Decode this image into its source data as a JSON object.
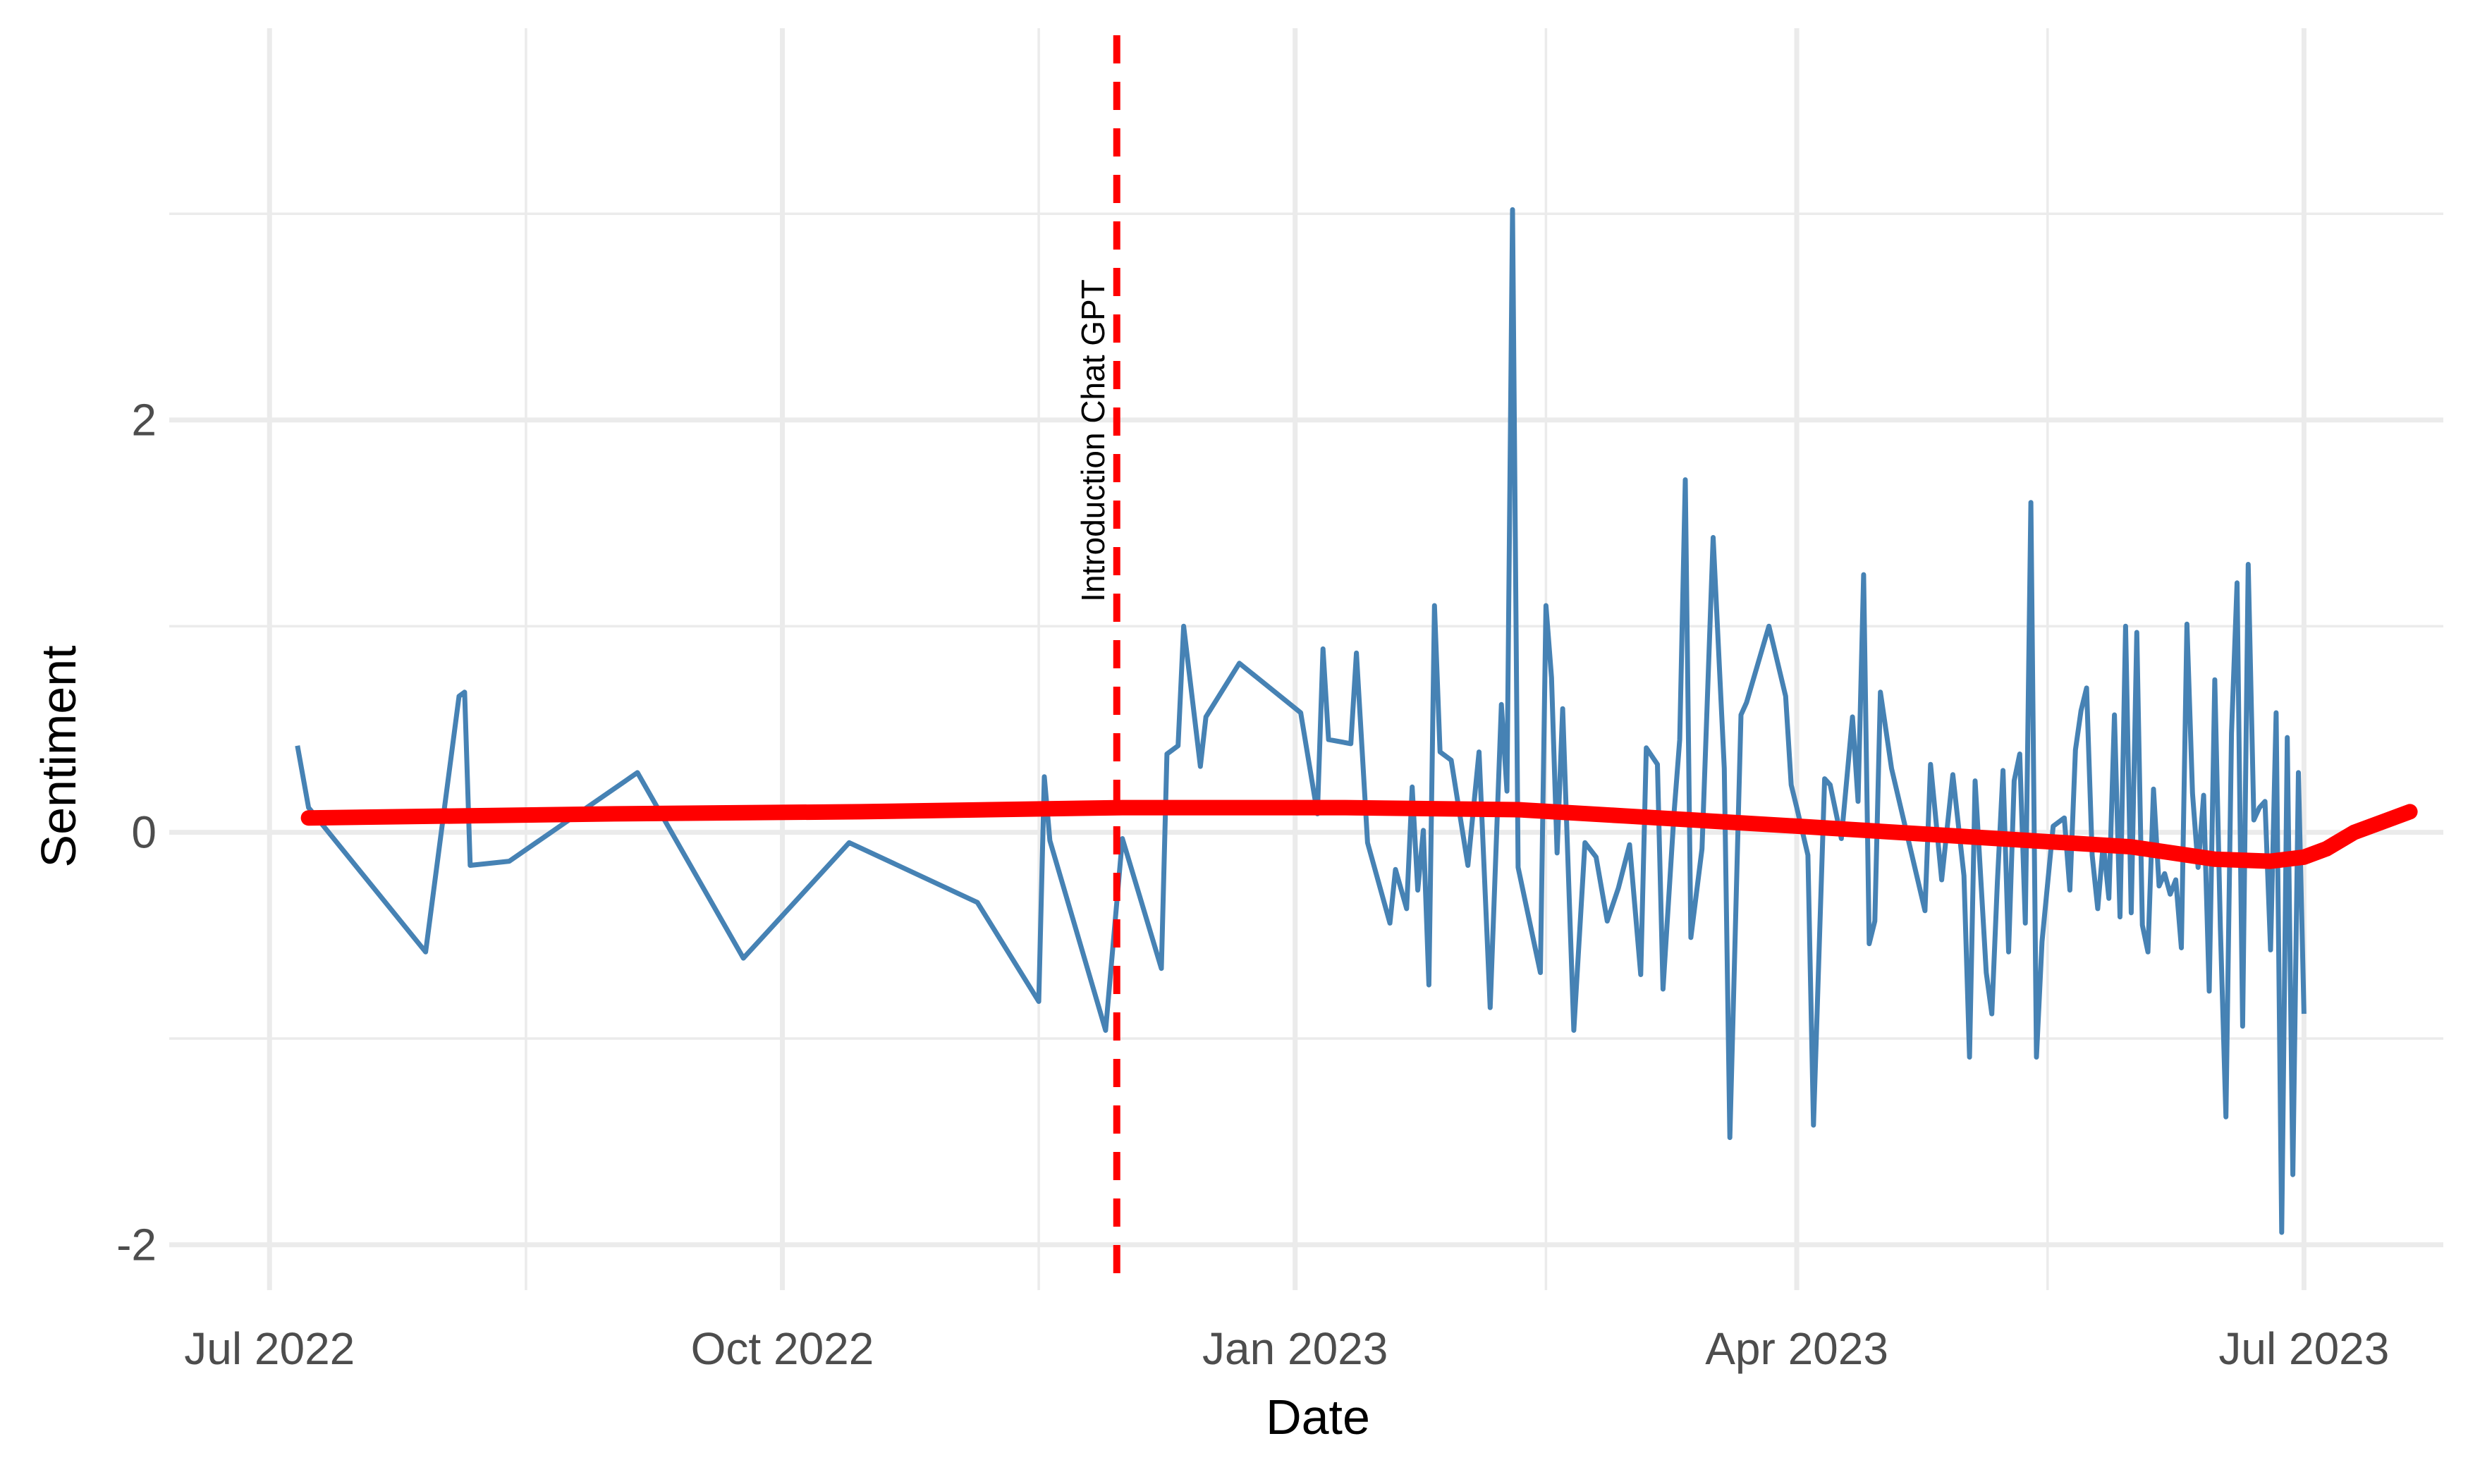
{
  "chart_data": {
    "type": "line",
    "xlabel": "Date",
    "ylabel": "Sentiment",
    "x_ticks": [
      {
        "date": "2022-07-01",
        "label": "Jul 2022"
      },
      {
        "date": "2022-10-01",
        "label": "Oct 2022"
      },
      {
        "date": "2023-01-01",
        "label": "Jan 2023"
      },
      {
        "date": "2023-04-01",
        "label": "Apr 2023"
      },
      {
        "date": "2023-07-01",
        "label": "Jul 2023"
      }
    ],
    "x_minor_ticks": [
      "2022-08-16",
      "2022-11-16",
      "2023-02-15",
      "2023-05-16"
    ],
    "xlim": [
      "2022-06-13",
      "2023-07-26"
    ],
    "y_ticks": [
      {
        "value": -2,
        "label": "-2"
      },
      {
        "value": 0,
        "label": "0"
      },
      {
        "value": 2,
        "label": "2"
      }
    ],
    "y_minor_ticks": [
      -1,
      1,
      3
    ],
    "ylim": [
      -2.22,
      3.9
    ],
    "grid": true,
    "annotation": {
      "date": "2022-11-30",
      "label": "Introduction Chat GPT",
      "color": "#ff0000",
      "style": "dashed"
    },
    "series": [
      {
        "color": "#4682b4",
        "points": [
          [
            "2022-07-06",
            0.42
          ],
          [
            "2022-07-08",
            0.12
          ],
          [
            "2022-07-29",
            -0.58
          ],
          [
            "2022-08-04",
            0.66
          ],
          [
            "2022-08-05",
            0.68
          ],
          [
            "2022-08-06",
            -0.16
          ],
          [
            "2022-08-13",
            -0.14
          ],
          [
            "2022-09-05",
            0.29
          ],
          [
            "2022-09-24",
            -0.61
          ],
          [
            "2022-10-13",
            -0.05
          ],
          [
            "2022-11-05",
            -0.34
          ],
          [
            "2022-11-16",
            -0.82
          ],
          [
            "2022-11-17",
            0.27
          ],
          [
            "2022-11-18",
            -0.04
          ],
          [
            "2022-11-28",
            -0.96
          ],
          [
            "2022-12-01",
            -0.03
          ],
          [
            "2022-12-08",
            -0.66
          ],
          [
            "2022-12-09",
            0.38
          ],
          [
            "2022-12-11",
            0.42
          ],
          [
            "2022-12-12",
            1.0
          ],
          [
            "2022-12-15",
            0.32
          ],
          [
            "2022-12-16",
            0.56
          ],
          [
            "2022-12-22",
            0.82
          ],
          [
            "2023-01-02",
            0.58
          ],
          [
            "2023-01-05",
            0.09
          ],
          [
            "2023-01-06",
            0.89
          ],
          [
            "2023-01-07",
            0.45
          ],
          [
            "2023-01-11",
            0.43
          ],
          [
            "2023-01-12",
            0.87
          ],
          [
            "2023-01-14",
            -0.05
          ],
          [
            "2023-01-18",
            -0.44
          ],
          [
            "2023-01-19",
            -0.18
          ],
          [
            "2023-01-21",
            -0.37
          ],
          [
            "2023-01-22",
            0.22
          ],
          [
            "2023-01-23",
            -0.28
          ],
          [
            "2023-01-24",
            0.01
          ],
          [
            "2023-01-25",
            -0.74
          ],
          [
            "2023-01-26",
            1.1
          ],
          [
            "2023-01-27",
            0.39
          ],
          [
            "2023-01-29",
            0.35
          ],
          [
            "2023-02-01",
            -0.16
          ],
          [
            "2023-02-03",
            0.39
          ],
          [
            "2023-02-05",
            -0.85
          ],
          [
            "2023-02-07",
            0.62
          ],
          [
            "2023-02-08",
            0.2
          ],
          [
            "2023-02-09",
            3.02
          ],
          [
            "2023-02-10",
            -0.17
          ],
          [
            "2023-02-14",
            -0.68
          ],
          [
            "2023-02-15",
            1.1
          ],
          [
            "2023-02-16",
            0.75
          ],
          [
            "2023-02-17",
            -0.1
          ],
          [
            "2023-02-18",
            0.6
          ],
          [
            "2023-02-20",
            -0.96
          ],
          [
            "2023-02-22",
            -0.05
          ],
          [
            "2023-02-24",
            -0.12
          ],
          [
            "2023-02-26",
            -0.43
          ],
          [
            "2023-02-28",
            -0.27
          ],
          [
            "2023-03-02",
            -0.06
          ],
          [
            "2023-03-04",
            -0.69
          ],
          [
            "2023-03-05",
            0.41
          ],
          [
            "2023-03-07",
            0.33
          ],
          [
            "2023-03-08",
            -0.76
          ],
          [
            "2023-03-10",
            0.1
          ],
          [
            "2023-03-11",
            0.45
          ],
          [
            "2023-03-12",
            1.71
          ],
          [
            "2023-03-13",
            -0.51
          ],
          [
            "2023-03-15",
            -0.08
          ],
          [
            "2023-03-17",
            1.43
          ],
          [
            "2023-03-19",
            0.31
          ],
          [
            "2023-03-20",
            -1.48
          ],
          [
            "2023-03-22",
            0.57
          ],
          [
            "2023-03-23",
            0.63
          ],
          [
            "2023-03-27",
            1.0
          ],
          [
            "2023-03-30",
            0.66
          ],
          [
            "2023-03-31",
            0.23
          ],
          [
            "2023-04-01",
            0.12
          ],
          [
            "2023-04-03",
            -0.11
          ],
          [
            "2023-04-04",
            -1.42
          ],
          [
            "2023-04-06",
            0.26
          ],
          [
            "2023-04-07",
            0.23
          ],
          [
            "2023-04-09",
            -0.03
          ],
          [
            "2023-04-11",
            0.56
          ],
          [
            "2023-04-12",
            0.15
          ],
          [
            "2023-04-13",
            1.25
          ],
          [
            "2023-04-14",
            -0.54
          ],
          [
            "2023-04-15",
            -0.43
          ],
          [
            "2023-04-16",
            0.68
          ],
          [
            "2023-04-18",
            0.31
          ],
          [
            "2023-04-22",
            -0.15
          ],
          [
            "2023-04-24",
            -0.38
          ],
          [
            "2023-04-25",
            0.33
          ],
          [
            "2023-04-27",
            -0.23
          ],
          [
            "2023-04-29",
            0.28
          ],
          [
            "2023-05-01",
            -0.21
          ],
          [
            "2023-05-02",
            -1.09
          ],
          [
            "2023-05-03",
            0.25
          ],
          [
            "2023-05-05",
            -0.68
          ],
          [
            "2023-05-06",
            -0.88
          ],
          [
            "2023-05-07",
            -0.24
          ],
          [
            "2023-05-08",
            0.3
          ],
          [
            "2023-05-09",
            -0.58
          ],
          [
            "2023-05-10",
            0.25
          ],
          [
            "2023-05-11",
            0.38
          ],
          [
            "2023-05-12",
            -0.44
          ],
          [
            "2023-05-13",
            1.6
          ],
          [
            "2023-05-14",
            -1.09
          ],
          [
            "2023-05-15",
            -0.53
          ],
          [
            "2023-05-17",
            0.03
          ],
          [
            "2023-05-19",
            0.07
          ],
          [
            "2023-05-20",
            -0.28
          ],
          [
            "2023-05-21",
            0.4
          ],
          [
            "2023-05-22",
            0.59
          ],
          [
            "2023-05-23",
            0.7
          ],
          [
            "2023-05-24",
            -0.11
          ],
          [
            "2023-05-25",
            -0.37
          ],
          [
            "2023-05-26",
            -0.05
          ],
          [
            "2023-05-27",
            -0.32
          ],
          [
            "2023-05-28",
            0.57
          ],
          [
            "2023-05-29",
            -0.41
          ],
          [
            "2023-05-30",
            1.0
          ],
          [
            "2023-05-31",
            -0.39
          ],
          [
            "2023-06-01",
            0.97
          ],
          [
            "2023-06-02",
            -0.45
          ],
          [
            "2023-06-03",
            -0.58
          ],
          [
            "2023-06-04",
            0.21
          ],
          [
            "2023-06-05",
            -0.26
          ],
          [
            "2023-06-06",
            -0.2
          ],
          [
            "2023-06-07",
            -0.3
          ],
          [
            "2023-06-08",
            -0.23
          ],
          [
            "2023-06-09",
            -0.56
          ],
          [
            "2023-06-10",
            1.01
          ],
          [
            "2023-06-11",
            0.19
          ],
          [
            "2023-06-12",
            -0.17
          ],
          [
            "2023-06-13",
            0.18
          ],
          [
            "2023-06-14",
            -0.77
          ],
          [
            "2023-06-15",
            0.74
          ],
          [
            "2023-06-16",
            -0.46
          ],
          [
            "2023-06-17",
            -1.38
          ],
          [
            "2023-06-18",
            0.48
          ],
          [
            "2023-06-19",
            1.21
          ],
          [
            "2023-06-20",
            -0.94
          ],
          [
            "2023-06-21",
            1.3
          ],
          [
            "2023-06-22",
            0.06
          ],
          [
            "2023-06-23",
            0.12
          ],
          [
            "2023-06-24",
            0.15
          ],
          [
            "2023-06-25",
            -0.57
          ],
          [
            "2023-06-26",
            0.58
          ],
          [
            "2023-06-27",
            -1.94
          ],
          [
            "2023-06-28",
            0.46
          ],
          [
            "2023-06-29",
            -1.66
          ],
          [
            "2023-06-30",
            0.29
          ],
          [
            "2023-07-01",
            -0.88
          ]
        ]
      },
      {
        "type": "smooth",
        "color": "#ff0000",
        "points": [
          [
            "2022-07-08",
            0.07
          ],
          [
            "2022-09-01",
            0.09
          ],
          [
            "2022-10-15",
            0.1
          ],
          [
            "2022-12-01",
            0.12
          ],
          [
            "2023-01-10",
            0.12
          ],
          [
            "2023-02-10",
            0.11
          ],
          [
            "2023-03-01",
            0.08
          ],
          [
            "2023-04-01",
            0.03
          ],
          [
            "2023-05-01",
            -0.02
          ],
          [
            "2023-05-31",
            -0.07
          ],
          [
            "2023-06-15",
            -0.13
          ],
          [
            "2023-06-25",
            -0.14
          ],
          [
            "2023-07-01",
            -0.12
          ],
          [
            "2023-07-05",
            -0.08
          ],
          [
            "2023-07-10",
            0.0
          ],
          [
            "2023-07-15",
            0.05
          ],
          [
            "2023-07-20",
            0.1
          ]
        ]
      }
    ]
  }
}
